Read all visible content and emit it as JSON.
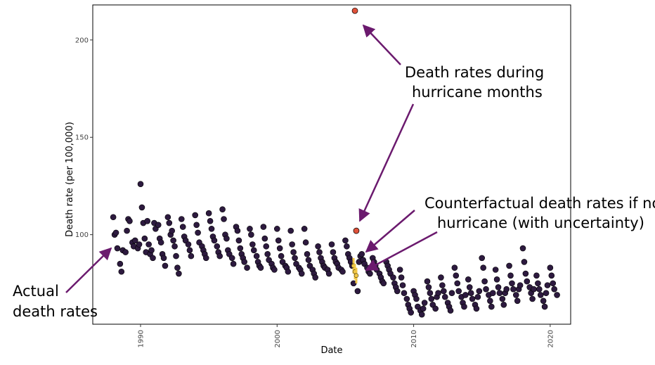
{
  "chart_data": {
    "type": "scatter",
    "title": "",
    "xlabel": "Date",
    "ylabel": "Death rate (per 100,000)",
    "xlim": [
      1986.5,
      2021.5
    ],
    "ylim": [
      54,
      218
    ],
    "x_ticks": [
      1990,
      2000,
      2010,
      2020
    ],
    "y_ticks": [
      100,
      150,
      200
    ],
    "x_tick_labels": [
      "1990",
      "2000",
      "2010",
      "2020"
    ],
    "y_tick_labels": [
      "100",
      "150",
      "200"
    ],
    "grid": false,
    "series": [
      {
        "name": "Actual death rates",
        "color": "#2d1a3f",
        "points": [
          [
            1988.0,
            109
          ],
          [
            1988.1,
            100
          ],
          [
            1988.2,
            101
          ],
          [
            1988.3,
            93
          ],
          [
            1988.5,
            85
          ],
          [
            1988.6,
            81
          ],
          [
            1988.7,
            92
          ],
          [
            1988.9,
            91
          ],
          [
            1989.0,
            102
          ],
          [
            1989.1,
            108
          ],
          [
            1989.2,
            107
          ],
          [
            1989.4,
            96
          ],
          [
            1989.5,
            94
          ],
          [
            1989.6,
            97
          ],
          [
            1989.8,
            93
          ],
          [
            1989.9,
            95
          ],
          [
            1990.0,
            126
          ],
          [
            1990.1,
            114
          ],
          [
            1990.2,
            106
          ],
          [
            1990.3,
            98
          ],
          [
            1990.4,
            91
          ],
          [
            1990.5,
            107
          ],
          [
            1990.6,
            95
          ],
          [
            1990.7,
            90
          ],
          [
            1990.8,
            92
          ],
          [
            1990.9,
            88
          ],
          [
            1991.0,
            106
          ],
          [
            1991.1,
            103
          ],
          [
            1991.3,
            105
          ],
          [
            1991.4,
            98
          ],
          [
            1991.5,
            96
          ],
          [
            1991.6,
            90
          ],
          [
            1991.7,
            88
          ],
          [
            1991.8,
            84
          ],
          [
            1992.0,
            109
          ],
          [
            1992.1,
            106
          ],
          [
            1992.2,
            100
          ],
          [
            1992.3,
            102
          ],
          [
            1992.4,
            97
          ],
          [
            1992.5,
            94
          ],
          [
            1992.6,
            89
          ],
          [
            1992.7,
            83
          ],
          [
            1992.8,
            80
          ],
          [
            1993.0,
            108
          ],
          [
            1993.1,
            104
          ],
          [
            1993.2,
            99
          ],
          [
            1993.3,
            97
          ],
          [
            1993.5,
            95
          ],
          [
            1993.6,
            92
          ],
          [
            1993.7,
            89
          ],
          [
            1994.0,
            110
          ],
          [
            1994.1,
            105
          ],
          [
            1994.2,
            101
          ],
          [
            1994.3,
            96
          ],
          [
            1994.5,
            94
          ],
          [
            1994.6,
            92
          ],
          [
            1994.7,
            90
          ],
          [
            1994.8,
            88
          ],
          [
            1995.0,
            111
          ],
          [
            1995.1,
            107
          ],
          [
            1995.2,
            103
          ],
          [
            1995.3,
            99
          ],
          [
            1995.4,
            97
          ],
          [
            1995.6,
            94
          ],
          [
            1995.7,
            91
          ],
          [
            1995.8,
            89
          ],
          [
            1996.0,
            113
          ],
          [
            1996.1,
            108
          ],
          [
            1996.2,
            100
          ],
          [
            1996.3,
            98
          ],
          [
            1996.4,
            92
          ],
          [
            1996.5,
            90
          ],
          [
            1996.7,
            88
          ],
          [
            1996.8,
            85
          ],
          [
            1997.0,
            104
          ],
          [
            1997.1,
            102
          ],
          [
            1997.2,
            97
          ],
          [
            1997.3,
            93
          ],
          [
            1997.4,
            90
          ],
          [
            1997.5,
            88
          ],
          [
            1997.6,
            86
          ],
          [
            1997.8,
            83
          ],
          [
            1998.0,
            103
          ],
          [
            1998.1,
            100
          ],
          [
            1998.2,
            95
          ],
          [
            1998.3,
            92
          ],
          [
            1998.5,
            89
          ],
          [
            1998.6,
            86
          ],
          [
            1998.7,
            84
          ],
          [
            1998.8,
            83
          ],
          [
            1999.0,
            104
          ],
          [
            1999.1,
            98
          ],
          [
            1999.2,
            94
          ],
          [
            1999.3,
            90
          ],
          [
            1999.4,
            87
          ],
          [
            1999.6,
            85
          ],
          [
            1999.7,
            83
          ],
          [
            1999.8,
            82
          ],
          [
            2000.0,
            103
          ],
          [
            2000.1,
            97
          ],
          [
            2000.2,
            93
          ],
          [
            2000.3,
            89
          ],
          [
            2000.4,
            86
          ],
          [
            2000.6,
            84
          ],
          [
            2000.7,
            83
          ],
          [
            2000.8,
            81
          ],
          [
            2001.0,
            102
          ],
          [
            2001.1,
            95
          ],
          [
            2001.2,
            91
          ],
          [
            2001.3,
            88
          ],
          [
            2001.4,
            85
          ],
          [
            2001.6,
            83
          ],
          [
            2001.7,
            82
          ],
          [
            2001.8,
            80
          ],
          [
            2002.0,
            103
          ],
          [
            2002.1,
            96
          ],
          [
            2002.2,
            90
          ],
          [
            2002.3,
            87
          ],
          [
            2002.4,
            84
          ],
          [
            2002.6,
            82
          ],
          [
            2002.7,
            80
          ],
          [
            2002.8,
            78
          ],
          [
            2003.0,
            94
          ],
          [
            2003.1,
            91
          ],
          [
            2003.2,
            88
          ],
          [
            2003.3,
            86
          ],
          [
            2003.4,
            84
          ],
          [
            2003.5,
            83
          ],
          [
            2003.7,
            82
          ],
          [
            2003.8,
            80
          ],
          [
            2004.0,
            95
          ],
          [
            2004.1,
            91
          ],
          [
            2004.2,
            88
          ],
          [
            2004.3,
            86
          ],
          [
            2004.4,
            85
          ],
          [
            2004.5,
            83
          ],
          [
            2004.7,
            82
          ],
          [
            2004.8,
            81
          ],
          [
            2005.0,
            97
          ],
          [
            2005.1,
            94
          ],
          [
            2005.2,
            90
          ],
          [
            2005.3,
            88
          ],
          [
            2005.4,
            86
          ],
          [
            2005.5,
            84
          ],
          [
            2005.6,
            75
          ],
          [
            2005.9,
            71
          ],
          [
            2006.0,
            86
          ],
          [
            2006.1,
            89
          ],
          [
            2006.2,
            90
          ],
          [
            2006.3,
            87
          ],
          [
            2006.4,
            85
          ],
          [
            2006.6,
            83
          ],
          [
            2006.7,
            81
          ],
          [
            2006.8,
            80
          ],
          [
            2007.0,
            88
          ],
          [
            2007.1,
            86
          ],
          [
            2007.2,
            84
          ],
          [
            2007.3,
            82
          ],
          [
            2007.5,
            80
          ],
          [
            2007.6,
            78
          ],
          [
            2007.7,
            76
          ],
          [
            2007.8,
            75
          ],
          [
            2008.0,
            86
          ],
          [
            2008.1,
            84
          ],
          [
            2008.2,
            82
          ],
          [
            2008.3,
            80
          ],
          [
            2008.5,
            78
          ],
          [
            2008.6,
            75
          ],
          [
            2008.7,
            73
          ],
          [
            2008.8,
            71
          ],
          [
            2009.0,
            82
          ],
          [
            2009.1,
            78
          ],
          [
            2009.2,
            74
          ],
          [
            2009.3,
            70
          ],
          [
            2009.5,
            67
          ],
          [
            2009.6,
            64
          ],
          [
            2009.7,
            62
          ],
          [
            2009.8,
            60
          ],
          [
            2010.0,
            71
          ],
          [
            2010.1,
            69
          ],
          [
            2010.2,
            67
          ],
          [
            2010.3,
            63
          ],
          [
            2010.5,
            61
          ],
          [
            2010.6,
            59
          ],
          [
            2010.7,
            62
          ],
          [
            2010.8,
            65
          ],
          [
            2011.0,
            76
          ],
          [
            2011.1,
            73
          ],
          [
            2011.2,
            70
          ],
          [
            2011.3,
            67
          ],
          [
            2011.4,
            64
          ],
          [
            2011.6,
            62
          ],
          [
            2011.7,
            68
          ],
          [
            2011.8,
            70
          ],
          [
            2012.0,
            78
          ],
          [
            2012.1,
            74
          ],
          [
            2012.2,
            71
          ],
          [
            2012.3,
            68
          ],
          [
            2012.5,
            65
          ],
          [
            2012.6,
            63
          ],
          [
            2012.7,
            61
          ],
          [
            2012.8,
            70
          ],
          [
            2013.0,
            83
          ],
          [
            2013.1,
            79
          ],
          [
            2013.2,
            75
          ],
          [
            2013.3,
            71
          ],
          [
            2013.5,
            68
          ],
          [
            2013.6,
            65
          ],
          [
            2013.7,
            63
          ],
          [
            2013.8,
            69
          ],
          [
            2014.0,
            77
          ],
          [
            2014.1,
            73
          ],
          [
            2014.2,
            70
          ],
          [
            2014.3,
            67
          ],
          [
            2014.5,
            64
          ],
          [
            2014.6,
            62
          ],
          [
            2014.7,
            68
          ],
          [
            2014.8,
            71
          ],
          [
            2015.0,
            88
          ],
          [
            2015.1,
            83
          ],
          [
            2015.2,
            76
          ],
          [
            2015.3,
            72
          ],
          [
            2015.5,
            69
          ],
          [
            2015.6,
            66
          ],
          [
            2015.7,
            63
          ],
          [
            2015.8,
            70
          ],
          [
            2016.0,
            82
          ],
          [
            2016.1,
            77
          ],
          [
            2016.2,
            73
          ],
          [
            2016.3,
            70
          ],
          [
            2016.5,
            67
          ],
          [
            2016.6,
            64
          ],
          [
            2016.7,
            70
          ],
          [
            2016.8,
            72
          ],
          [
            2017.0,
            84
          ],
          [
            2017.1,
            79
          ],
          [
            2017.2,
            75
          ],
          [
            2017.3,
            72
          ],
          [
            2017.5,
            69
          ],
          [
            2017.6,
            66
          ],
          [
            2017.7,
            72
          ],
          [
            2017.8,
            74
          ],
          [
            2018.0,
            93
          ],
          [
            2018.1,
            86
          ],
          [
            2018.2,
            80
          ],
          [
            2018.3,
            76
          ],
          [
            2018.5,
            73
          ],
          [
            2018.6,
            70
          ],
          [
            2018.7,
            67
          ],
          [
            2018.8,
            72
          ],
          [
            2019.0,
            79
          ],
          [
            2019.1,
            75
          ],
          [
            2019.2,
            72
          ],
          [
            2019.3,
            69
          ],
          [
            2019.5,
            66
          ],
          [
            2019.6,
            63
          ],
          [
            2019.7,
            70
          ],
          [
            2019.8,
            74
          ],
          [
            2020.0,
            83
          ],
          [
            2020.1,
            79
          ],
          [
            2020.2,
            75
          ],
          [
            2020.3,
            72
          ],
          [
            2020.5,
            69
          ]
        ]
      },
      {
        "name": "Death rates during hurricane months",
        "color": "#e0523a",
        "points": [
          [
            2005.7,
            215
          ],
          [
            2005.8,
            102
          ]
        ]
      },
      {
        "name": "Counterfactual death rates if no hurricane (with uncertainty)",
        "color": "#f2c744",
        "points": [
          {
            "x": 2005.6,
            "y": 84,
            "low": 80,
            "high": 88
          },
          {
            "x": 2005.7,
            "y": 81,
            "low": 77,
            "high": 85
          },
          {
            "x": 2005.8,
            "y": 79,
            "low": 75,
            "high": 83
          }
        ]
      }
    ],
    "annotations": [
      {
        "lines": [
          "Death rates during",
          "hurricane months"
        ],
        "target": "hurricane-months"
      },
      {
        "lines": [
          "Counterfactual death rates if no",
          "hurricane (with uncertainty)"
        ],
        "target": "counterfactual"
      },
      {
        "lines": [
          "Actual",
          "death rates"
        ],
        "target": "actual"
      }
    ]
  }
}
